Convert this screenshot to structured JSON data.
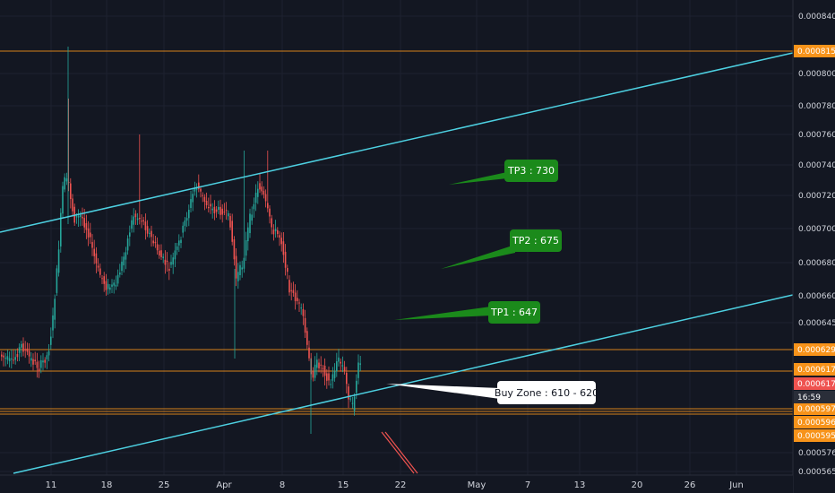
{
  "chart_data": {
    "type": "candlestick",
    "price_axis": {
      "ticks": [
        "0.000840",
        "0.000800",
        "0.000780",
        "0.000760",
        "0.000740",
        "0.000720",
        "0.000700",
        "0.000680",
        "0.000660",
        "0.000645",
        "0.000576",
        "0.000565"
      ],
      "range": [
        0.00056,
        0.00085
      ]
    },
    "date_axis": {
      "ticks": [
        "11",
        "18",
        "25",
        "Apr",
        "8",
        "15",
        "22",
        "May",
        "7",
        "13",
        "20",
        "26",
        "Jun"
      ]
    },
    "horizontal_levels": [
      {
        "value": 0.000815,
        "label": "0.000815"
      },
      {
        "value": 0.000629,
        "label": "0.000629"
      },
      {
        "value": 0.000617,
        "label": "0.000617"
      },
      {
        "value": 0.000597,
        "label": "0.000597"
      },
      {
        "value": 0.000596,
        "label": "0.000596"
      },
      {
        "value": 0.000595,
        "label": "0.000595"
      }
    ],
    "current_price": {
      "label": "0.000617",
      "countdown": "16:59"
    },
    "callouts": [
      {
        "text": "TP3 : 730",
        "color": "#1b8a1b"
      },
      {
        "text": "TP2 : 675",
        "color": "#1b8a1b"
      },
      {
        "text": "TP1 : 647",
        "color": "#1b8a1b"
      },
      {
        "text": "Buy Zone : 610 - 620",
        "color": "#ffffff"
      }
    ],
    "colors": {
      "background": "#131722",
      "up": "#26a69a",
      "down": "#ef5350",
      "channel": "#4dd0e1",
      "level": "#f7931a",
      "axis_text": "#d1d4dc"
    },
    "grid": true
  }
}
